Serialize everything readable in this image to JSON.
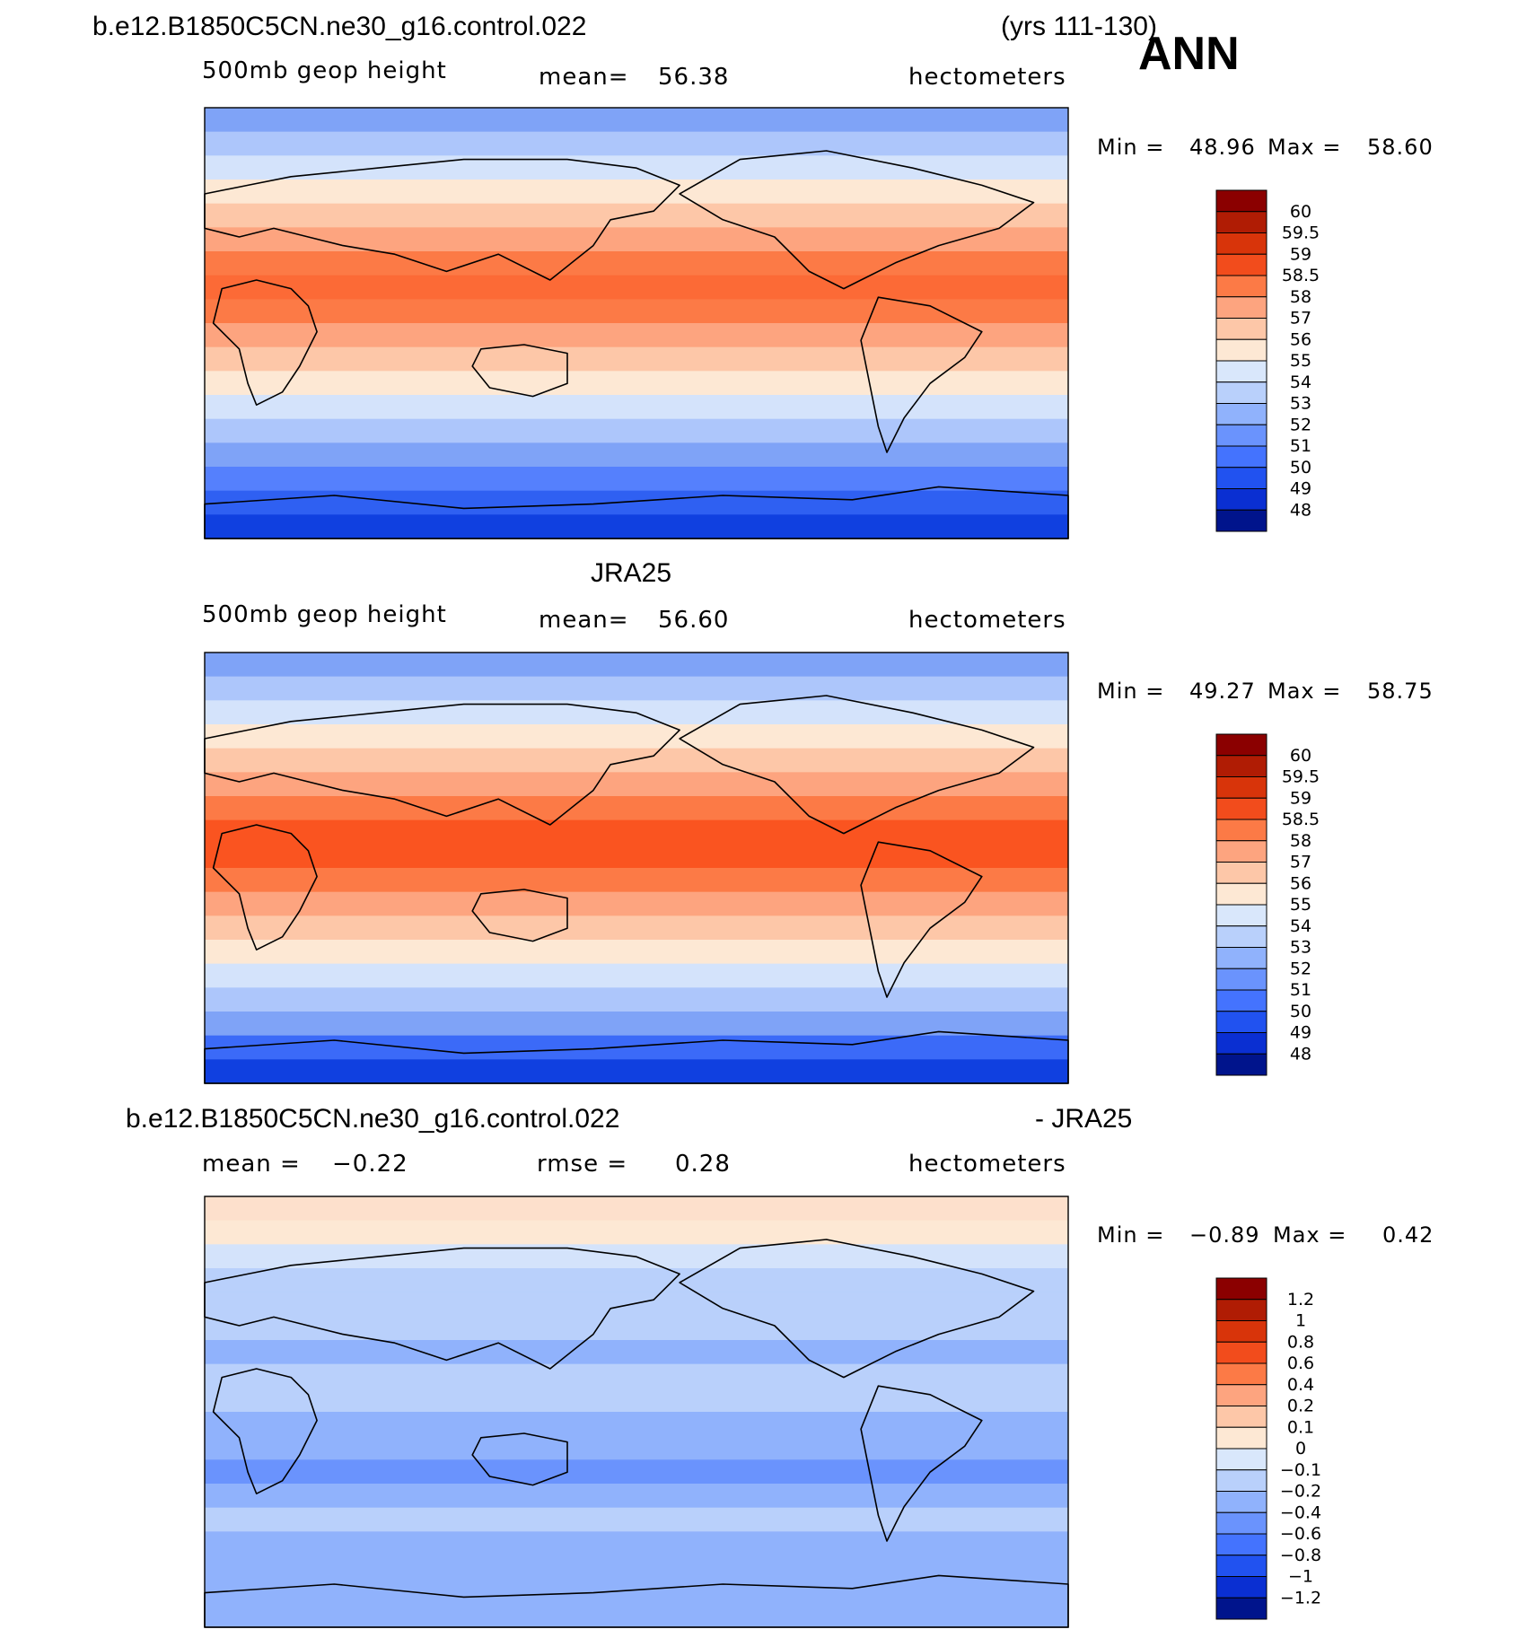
{
  "header": {
    "case_name": "b.e12.B1850C5CN.ne30_g16.control.022",
    "years": "(yrs 111-130)",
    "season": "ANN"
  },
  "chart_data": [
    {
      "type": "heatmap",
      "title": "",
      "variable": "500mb geop height",
      "mean_label": "mean=",
      "mean_value": "56.38",
      "units": "hectometers",
      "min_label": "Min =",
      "min_value": "48.96",
      "max_label": "Max =",
      "max_value": "58.60",
      "levels": [
        "60",
        "59.5",
        "59",
        "58.5",
        "58",
        "57",
        "56",
        "55",
        "54",
        "53",
        "52",
        "51",
        "50",
        "49",
        "48"
      ],
      "colors": [
        "#8b0000",
        "#b01c04",
        "#d8340a",
        "#f24c1c",
        "#fc7a46",
        "#fda47f",
        "#fdc7a8",
        "#fde8d4",
        "#d9e7fb",
        "#b9d0fb",
        "#90b2fc",
        "#6a93fd",
        "#4473fe",
        "#2152f0",
        "#0a2fd2",
        "#00148c"
      ],
      "band_colors": [
        "#7fa3f7",
        "#adc6fb",
        "#d4e3fb",
        "#fde8d4",
        "#fdc7a8",
        "#fda47f",
        "#fc7a46",
        "#fc6a36",
        "#fc7a46",
        "#fda47f",
        "#fdc7a8",
        "#fde8d4",
        "#d4e3fb",
        "#adc6fb",
        "#7fa3f7",
        "#5580fd",
        "#2f60f2",
        "#1040e0"
      ]
    },
    {
      "type": "heatmap",
      "title": "JRA25",
      "variable": "500mb geop height",
      "mean_label": "mean=",
      "mean_value": "56.60",
      "units": "hectometers",
      "min_label": "Min =",
      "min_value": "49.27",
      "max_label": "Max =",
      "max_value": "58.75",
      "levels": [
        "60",
        "59.5",
        "59",
        "58.5",
        "58",
        "57",
        "56",
        "55",
        "54",
        "53",
        "52",
        "51",
        "50",
        "49",
        "48"
      ],
      "colors": [
        "#8b0000",
        "#b01c04",
        "#d8340a",
        "#f24c1c",
        "#fc7a46",
        "#fda47f",
        "#fdc7a8",
        "#fde8d4",
        "#d9e7fb",
        "#b9d0fb",
        "#90b2fc",
        "#6a93fd",
        "#4473fe",
        "#2152f0",
        "#0a2fd2",
        "#00148c"
      ],
      "band_colors": [
        "#7fa3f7",
        "#adc6fb",
        "#d4e3fb",
        "#fde8d4",
        "#fdc7a8",
        "#fda47f",
        "#fc7a46",
        "#fa5420",
        "#fa5420",
        "#fc7a46",
        "#fda47f",
        "#fdc7a8",
        "#fde8d4",
        "#d4e3fb",
        "#adc6fb",
        "#7fa3f7",
        "#3b6af8",
        "#1040e0"
      ]
    },
    {
      "type": "heatmap",
      "title": "b.e12.B1850C5CN.ne30_g16.control.022",
      "title_right": "- JRA25",
      "mean_label": "mean =",
      "mean_value": "−0.22",
      "rmse_label": "rmse =",
      "rmse_value": "0.28",
      "units": "hectometers",
      "min_label": "Min =",
      "min_value": "−0.89",
      "max_label": "Max =",
      "max_value": "0.42",
      "levels": [
        "1.2",
        "1",
        "0.8",
        "0.6",
        "0.4",
        "0.2",
        "0.1",
        "0",
        "−0.1",
        "−0.2",
        "−0.4",
        "−0.6",
        "−0.8",
        "−1",
        "−1.2"
      ],
      "colors": [
        "#8b0000",
        "#b01c04",
        "#d8340a",
        "#f24c1c",
        "#fc7a46",
        "#fda47f",
        "#fdc7a8",
        "#fde8d4",
        "#d9e7fb",
        "#b9d0fb",
        "#90b2fc",
        "#6a93fd",
        "#4473fe",
        "#2152f0",
        "#0a2fd2",
        "#00148c"
      ],
      "band_colors": [
        "#fde0cc",
        "#fde8d4",
        "#d4e3fb",
        "#b9d0fb",
        "#b9d0fb",
        "#b9d0fb",
        "#90b2fc",
        "#b9d0fb",
        "#b9d0fb",
        "#90b2fc",
        "#90b2fc",
        "#6a93fd",
        "#90b2fc",
        "#b9d0fb",
        "#90b2fc",
        "#90b2fc",
        "#90b2fc",
        "#90b2fc"
      ]
    }
  ]
}
